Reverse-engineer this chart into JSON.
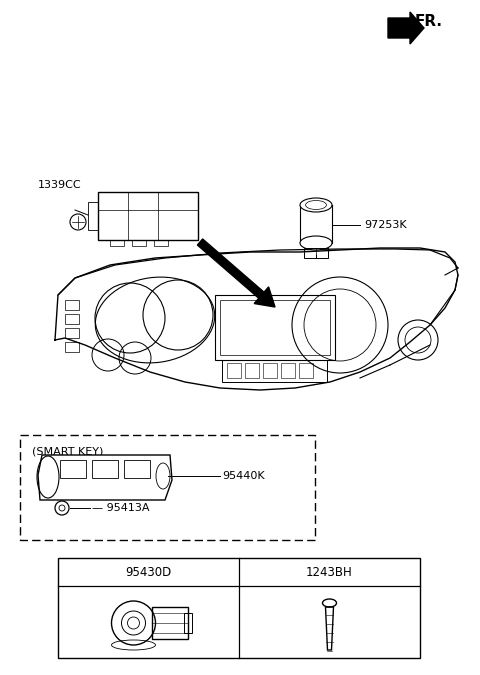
{
  "bg_color": "#ffffff",
  "fr_label": "FR.",
  "label_1339CC": "1339CC",
  "label_97253K": "97253K",
  "label_95440K": "95440K",
  "label_95413A": "95413A",
  "label_95430D": "95430D",
  "label_1243BH": "1243BH",
  "smart_key_text": "(SMART KEY)"
}
